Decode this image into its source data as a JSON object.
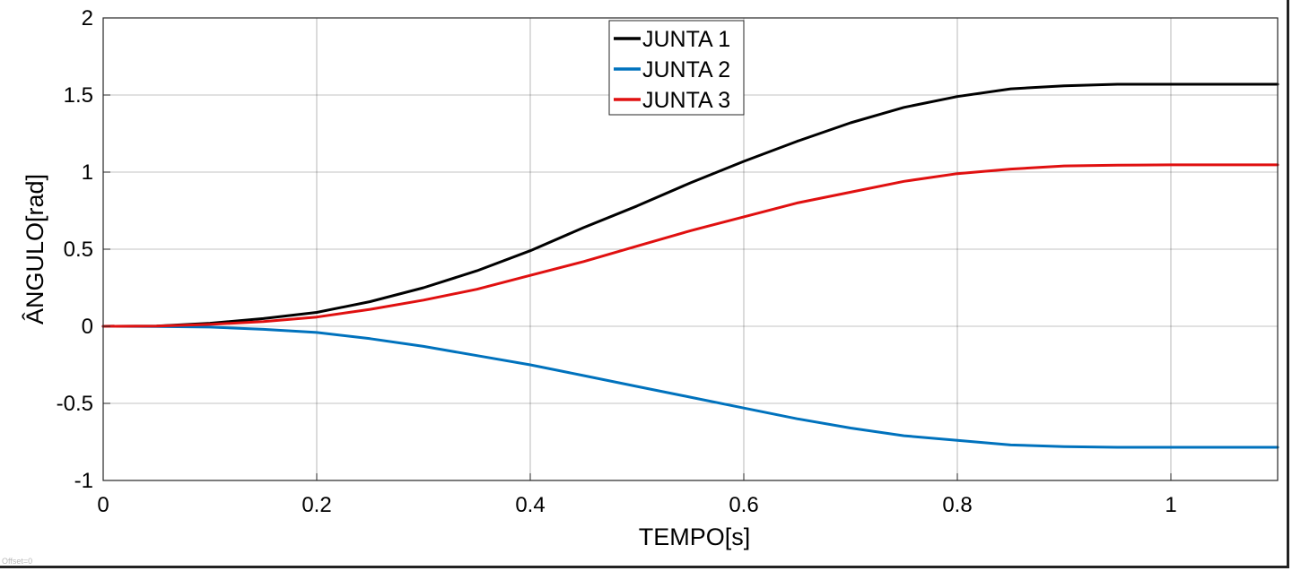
{
  "status": {
    "offset_label": "Offset=0"
  },
  "chart_data": {
    "type": "line",
    "xlabel": "TEMPO[s]",
    "ylabel": "ÂNGULO[rad]",
    "xlim": [
      0,
      1.1
    ],
    "ylim": [
      -1,
      2
    ],
    "xticks": [
      0,
      0.2,
      0.4,
      0.6,
      0.8,
      1
    ],
    "xtick_labels": [
      "0",
      "0.2",
      "0.4",
      "0.6",
      "0.8",
      "1"
    ],
    "yticks": [
      -1,
      -0.5,
      0,
      0.5,
      1,
      1.5,
      2
    ],
    "ytick_labels": [
      "-1",
      "-0.5",
      "0",
      "0.5",
      "1",
      "1.5",
      "2"
    ],
    "grid": true,
    "legend_position": "top-center",
    "x": [
      0,
      0.05,
      0.1,
      0.15,
      0.2,
      0.25,
      0.3,
      0.35,
      0.4,
      0.45,
      0.5,
      0.55,
      0.6,
      0.65,
      0.7,
      0.75,
      0.8,
      0.85,
      0.9,
      0.95,
      1.0,
      1.05,
      1.1
    ],
    "series": [
      {
        "name": "JUNTA 1",
        "color": "#000000",
        "values": [
          0,
          0.002,
          0.02,
          0.05,
          0.09,
          0.16,
          0.25,
          0.36,
          0.49,
          0.64,
          0.78,
          0.93,
          1.07,
          1.2,
          1.32,
          1.42,
          1.49,
          1.54,
          1.56,
          1.57,
          1.57,
          1.57,
          1.57
        ]
      },
      {
        "name": "JUNTA 2",
        "color": "#0072BD",
        "values": [
          0,
          -0.001,
          -0.005,
          -0.02,
          -0.04,
          -0.08,
          -0.13,
          -0.19,
          -0.25,
          -0.32,
          -0.39,
          -0.46,
          -0.53,
          -0.6,
          -0.66,
          -0.71,
          -0.74,
          -0.77,
          -0.78,
          -0.785,
          -0.785,
          -0.785,
          -0.785
        ]
      },
      {
        "name": "JUNTA 3",
        "color": "#E01010",
        "values": [
          0,
          0.002,
          0.012,
          0.03,
          0.06,
          0.11,
          0.17,
          0.24,
          0.33,
          0.42,
          0.52,
          0.62,
          0.71,
          0.8,
          0.87,
          0.94,
          0.99,
          1.02,
          1.04,
          1.045,
          1.047,
          1.047,
          1.047
        ]
      }
    ]
  }
}
